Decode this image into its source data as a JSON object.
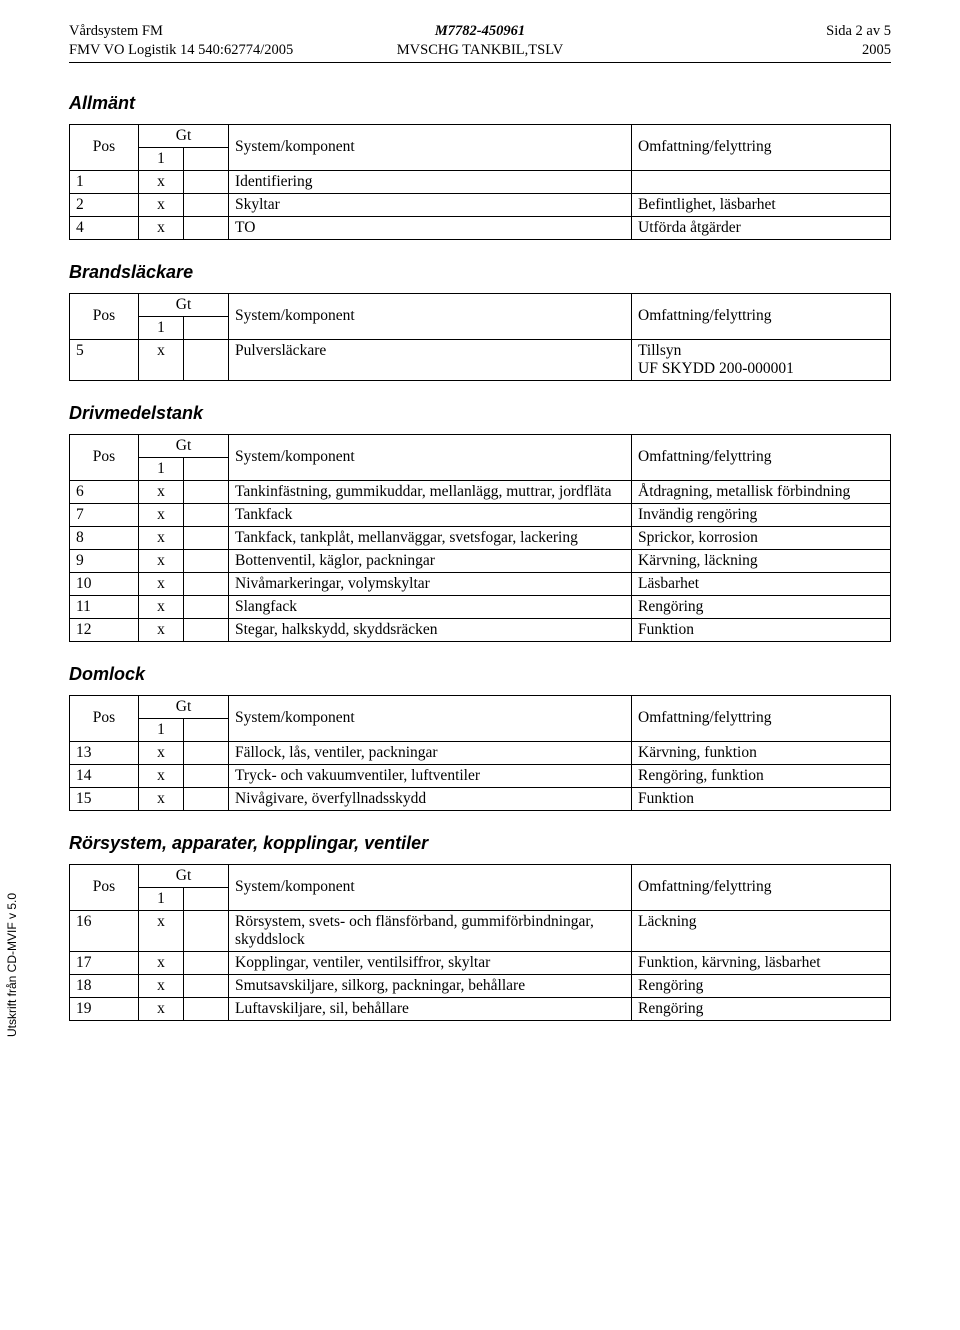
{
  "header": {
    "left1": "Vårdsystem FM",
    "left2": "FMV VO Logistik 14 540:62774/2005",
    "center1": "M7782-450961",
    "center2": "MVSCHG TANKBIL,TSLV",
    "right1": "Sida 2 av 5",
    "right2": "2005"
  },
  "labels": {
    "pos": "Pos",
    "gt": "Gt",
    "one": "1",
    "sys": "System/komponent",
    "omf": "Omfattning/felyttring"
  },
  "side_text": "Utskrift från CD-MVIF v 5.0",
  "sections": [
    {
      "title": "Allmänt",
      "rows": [
        {
          "pos": "1",
          "gt": "x",
          "sys": "Identifiering",
          "omf": ""
        },
        {
          "pos": "2",
          "gt": "x",
          "sys": "Skyltar",
          "omf": "Befintlighet, läsbarhet"
        },
        {
          "pos": "4",
          "gt": "x",
          "sys": "TO",
          "omf": "Utförda åtgärder"
        }
      ]
    },
    {
      "title": "Brandsläckare",
      "rows": [
        {
          "pos": "5",
          "gt": "x",
          "sys": "Pulversläckare",
          "omf": "Tillsyn\nUF SKYDD 200-000001"
        }
      ]
    },
    {
      "title": "Drivmedelstank",
      "rows": [
        {
          "pos": "6",
          "gt": "x",
          "sys": "Tankinfästning, gummikuddar, mellanlägg, muttrar, jordfläta",
          "omf": "Åtdragning, metallisk förbindning"
        },
        {
          "pos": "7",
          "gt": "x",
          "sys": "Tankfack",
          "omf": "Invändig rengöring"
        },
        {
          "pos": "8",
          "gt": "x",
          "sys": "Tankfack, tankplåt, mellanväggar, svetsfogar, lackering",
          "omf": "Sprickor, korrosion"
        },
        {
          "pos": "9",
          "gt": "x",
          "sys": "Bottenventil, käglor, packningar",
          "omf": "Kärvning, läckning"
        },
        {
          "pos": "10",
          "gt": "x",
          "sys": "Nivåmarkeringar, volymskyltar",
          "omf": "Läsbarhet"
        },
        {
          "pos": "11",
          "gt": "x",
          "sys": "Slangfack",
          "omf": "Rengöring"
        },
        {
          "pos": "12",
          "gt": "x",
          "sys": "Stegar, halkskydd, skyddsräcken",
          "omf": "Funktion"
        }
      ]
    },
    {
      "title": "Domlock",
      "rows": [
        {
          "pos": "13",
          "gt": "x",
          "sys": "Fällock, lås, ventiler, packningar",
          "omf": "Kärvning, funktion"
        },
        {
          "pos": "14",
          "gt": "x",
          "sys": "Tryck- och vakuumventiler, luftventiler",
          "omf": "Rengöring, funktion"
        },
        {
          "pos": "15",
          "gt": "x",
          "sys": "Nivågivare, överfyllnadsskydd",
          "omf": "Funktion"
        }
      ]
    },
    {
      "title": "Rörsystem, apparater, kopplingar, ventiler",
      "rows": [
        {
          "pos": "16",
          "gt": "x",
          "sys": "Rörsystem, svets- och flänsförband, gummiförbindningar, skyddslock",
          "omf": "Läckning"
        },
        {
          "pos": "17",
          "gt": "x",
          "sys": "Kopplingar, ventiler, ventilsiffror, skyltar",
          "omf": "Funktion, kärvning, läsbarhet"
        },
        {
          "pos": "18",
          "gt": "x",
          "sys": "Smutsavskiljare, silkorg, packningar, behållare",
          "omf": "Rengöring"
        },
        {
          "pos": "19",
          "gt": "x",
          "sys": "Luftavskiljare, sil, behållare",
          "omf": "Rengöring"
        }
      ]
    }
  ]
}
